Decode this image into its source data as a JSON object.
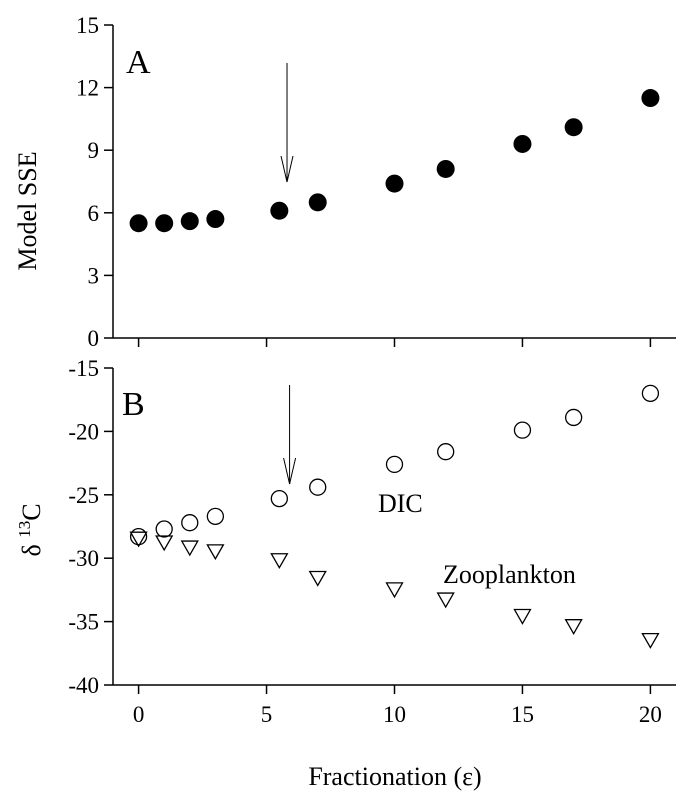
{
  "chart_data": [
    {
      "type": "scatter",
      "panel_label": "A",
      "xlabel": "",
      "ylabel": "Model SSE",
      "xlim": [
        -1,
        21
      ],
      "ylim": [
        0,
        15
      ],
      "xticks": [
        0,
        5,
        10,
        15,
        20
      ],
      "yticks": [
        0,
        3,
        6,
        9,
        12,
        15
      ],
      "grid": false,
      "marker_arrow_x": 5.8,
      "series": [
        {
          "marker": "filled-circle",
          "x": [
            0,
            1,
            2,
            3,
            5.5,
            7,
            10,
            12,
            15,
            17,
            20
          ],
          "y": [
            5.5,
            5.5,
            5.6,
            5.7,
            6.1,
            6.5,
            7.4,
            8.1,
            9.3,
            10.1,
            11.5
          ]
        }
      ]
    },
    {
      "type": "scatter",
      "panel_label": "B",
      "xlabel": "Fractionation (ε)",
      "ylabel_prefix": "δ ",
      "ylabel_sup": "13",
      "ylabel_suffix": "C",
      "xlim": [
        -1,
        21
      ],
      "ylim": [
        -40,
        -15
      ],
      "xticks": [
        0,
        5,
        10,
        15,
        20
      ],
      "yticks": [
        -15,
        -20,
        -25,
        -30,
        -35,
        -40
      ],
      "grid": false,
      "marker_arrow_x": 5.9,
      "series": [
        {
          "name": "DIC",
          "marker": "open-circle",
          "x": [
            0,
            1,
            2,
            3,
            5.5,
            7,
            10,
            12,
            15,
            17,
            20
          ],
          "y": [
            -28.3,
            -27.7,
            -27.2,
            -26.7,
            -25.3,
            -24.4,
            -22.6,
            -21.6,
            -19.9,
            -18.9,
            -17.0
          ]
        },
        {
          "name": "Zooplankton",
          "marker": "open-triangle-down",
          "x": [
            0,
            1,
            2,
            3,
            5.5,
            7,
            10,
            12,
            15,
            17,
            20
          ],
          "y": [
            -28.5,
            -28.8,
            -29.2,
            -29.5,
            -30.2,
            -31.6,
            -32.5,
            -33.3,
            -34.6,
            -35.4,
            -36.5
          ]
        }
      ]
    }
  ]
}
